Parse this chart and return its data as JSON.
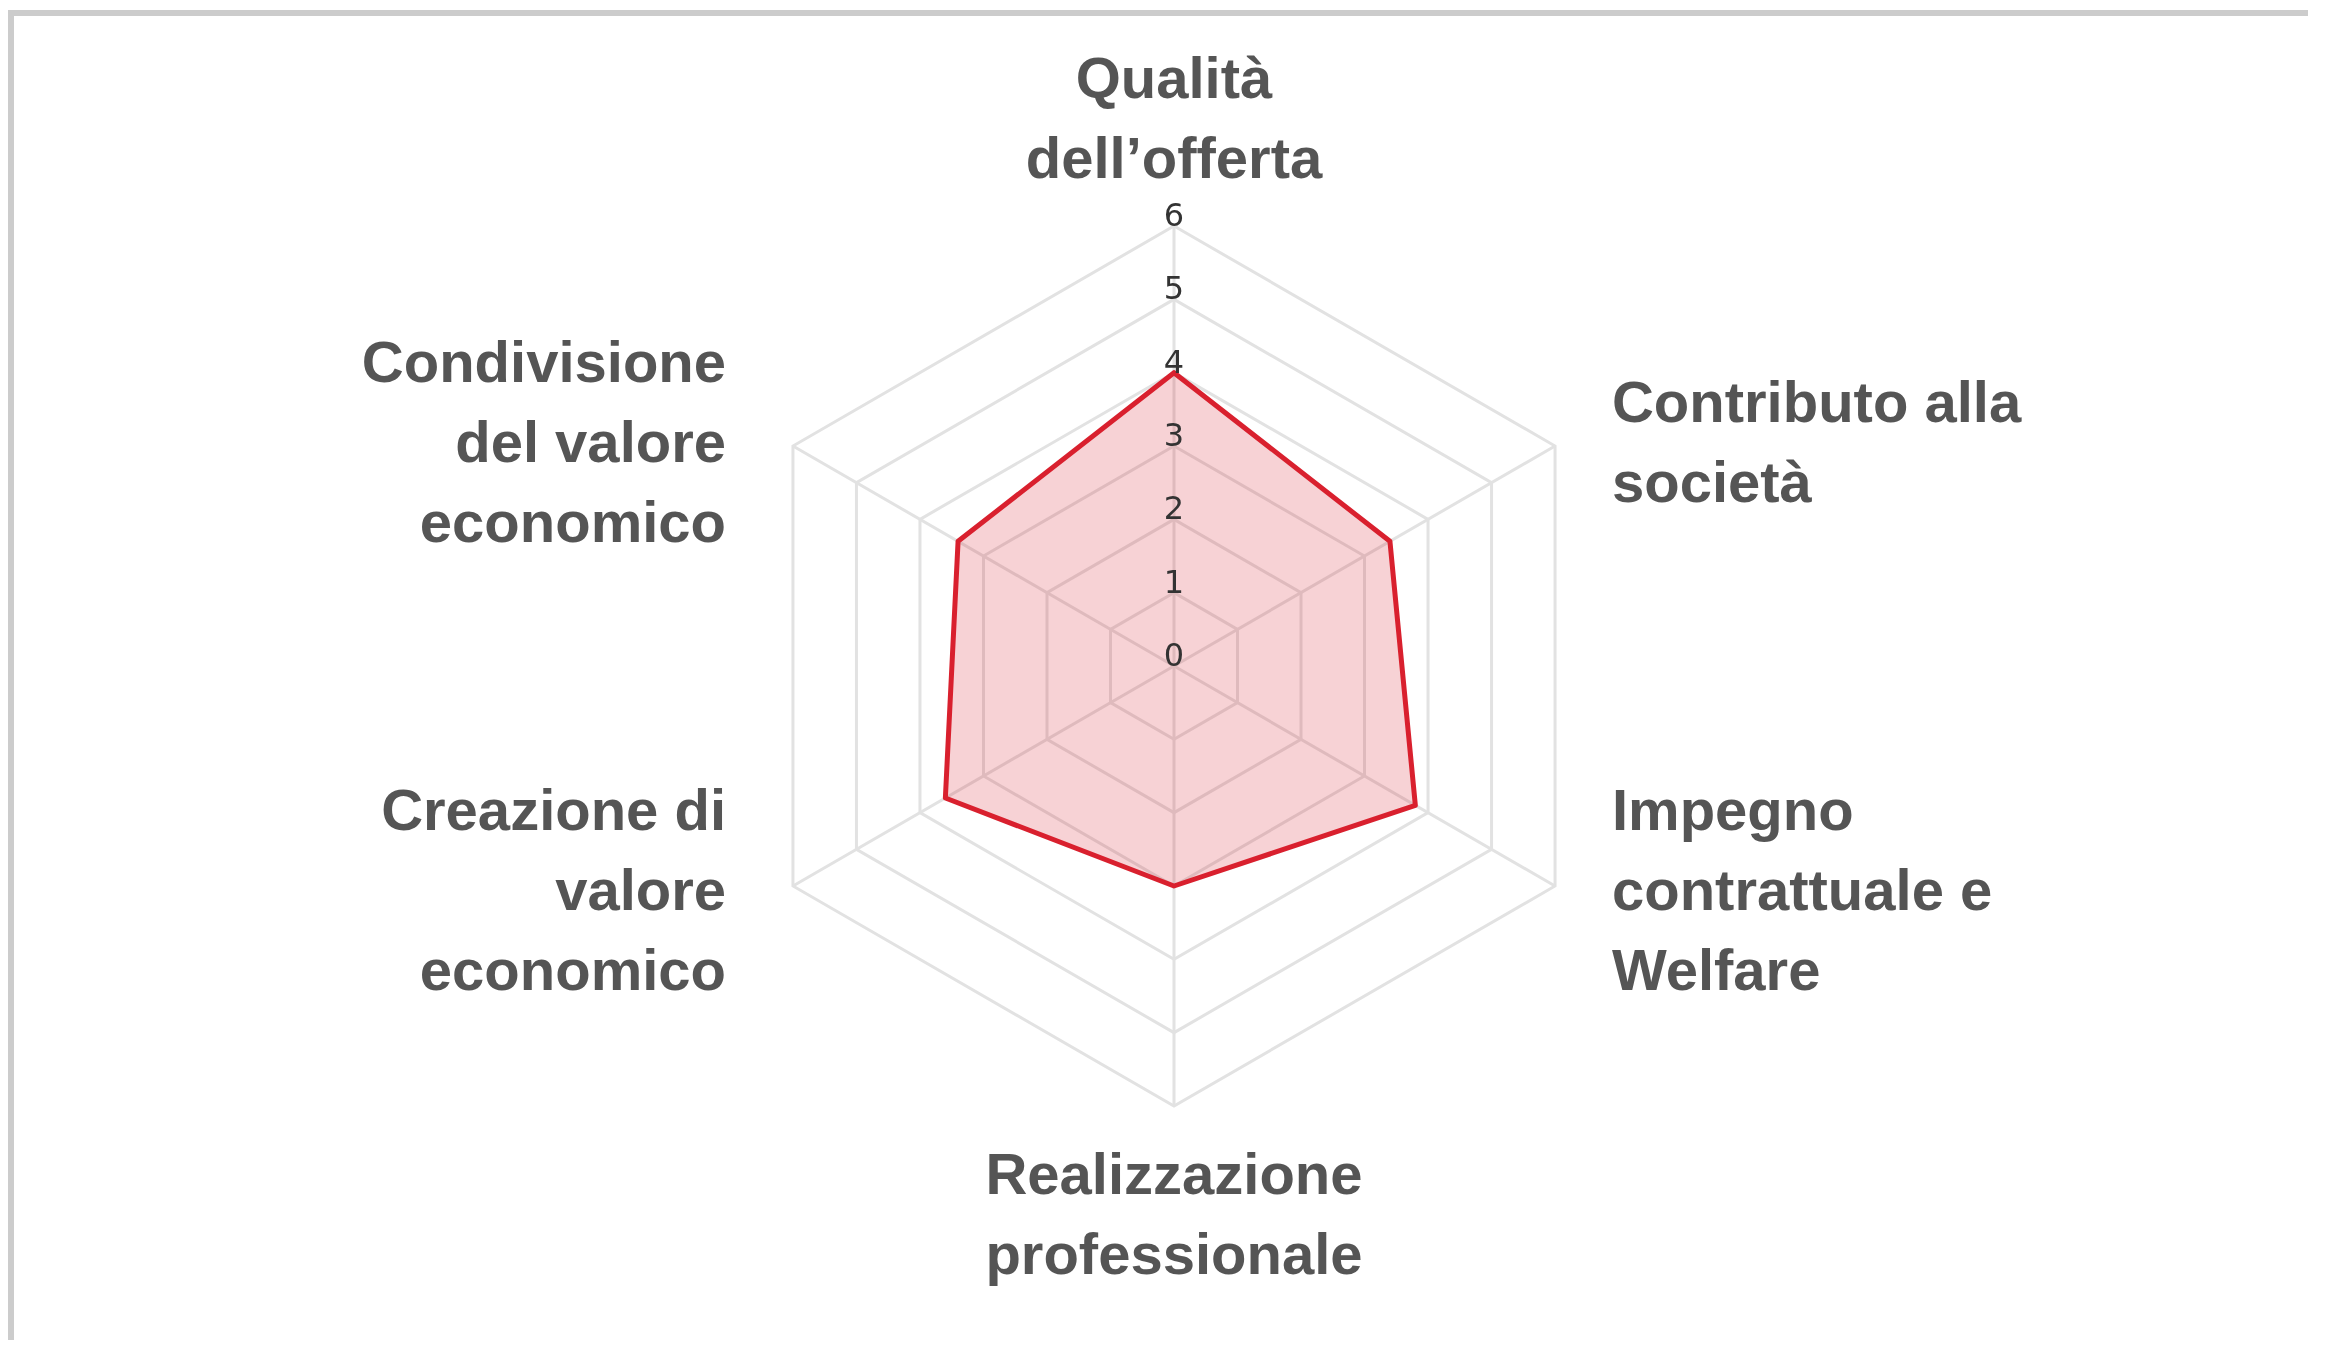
{
  "chart_data": {
    "type": "radar",
    "categories": [
      "Qualità dell’offerta",
      "Contributo alla società",
      "Impegno contrattuale e Welfare",
      "Realizzazione professionale",
      "Creazione di valore economico",
      "Condivisione del valore economico"
    ],
    "series": [
      {
        "color": "#d9202e",
        "values": [
          4,
          3.4,
          3.8,
          3,
          3.6,
          3.4
        ]
      }
    ],
    "ylim": [
      0,
      6
    ],
    "yticks": [
      0,
      1,
      2,
      3,
      4,
      5,
      6
    ],
    "legend": false
  }
}
